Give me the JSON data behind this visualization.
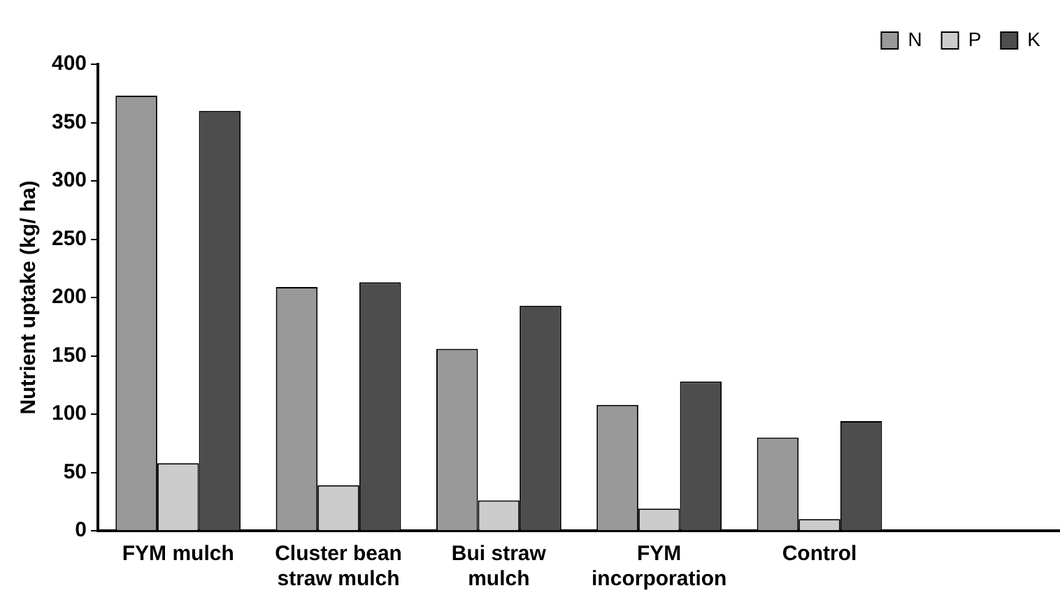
{
  "chart_data": {
    "type": "bar",
    "ylabel": "Nutrient uptake (kg/ ha)",
    "categories": [
      "FYM mulch",
      "Cluster bean straw mulch",
      "Bui straw mulch",
      "FYM incorporation",
      "Control",
      null
    ],
    "series": [
      {
        "name": "N",
        "color": "#999999",
        "values": [
          373,
          209,
          156,
          108,
          80,
          null
        ]
      },
      {
        "name": "P",
        "color": "#cccccc",
        "values": [
          58,
          39,
          26,
          19,
          10,
          null
        ]
      },
      {
        "name": "K",
        "color": "#4d4d4d",
        "values": [
          360,
          213,
          193,
          128,
          94,
          null
        ]
      }
    ],
    "ylim": [
      0,
      400
    ],
    "yticks": [
      0,
      50,
      100,
      150,
      200,
      250,
      300,
      350,
      400
    ],
    "grid": false,
    "legend": "top right"
  }
}
